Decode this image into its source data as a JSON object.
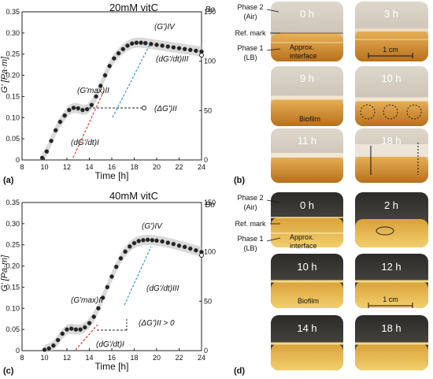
{
  "chart_data": [
    {
      "type": "line",
      "panel_label": "(a)",
      "title": "20mM vitC",
      "xlabel": "Time [h]",
      "ylabel": "G' [Pa·m]",
      "y2label": "Bo",
      "xlim": [
        8,
        24
      ],
      "ylim": [
        0,
        0.35
      ],
      "y2lim": [
        0,
        150
      ],
      "xticks": [
        "8",
        "10",
        "12",
        "14",
        "16",
        "18",
        "20",
        "22",
        "24"
      ],
      "yticks": [
        "0",
        "0.05",
        "0.10",
        "0.15",
        "0.20",
        "0.25",
        "0.30",
        "0.35"
      ],
      "y2ticks": [
        "0",
        "50",
        "100",
        "150"
      ],
      "series": [
        {
          "x": [
            9.8,
            10.2,
            10.6,
            11.0,
            11.4,
            11.8,
            12.2,
            12.6,
            13.0,
            13.4,
            13.8,
            14.2,
            14.6,
            15.0,
            15.4,
            15.8,
            16.2,
            16.6,
            17.0,
            17.4,
            17.8,
            18.2,
            18.6,
            19.0,
            19.5,
            20.0,
            20.5,
            21.0,
            21.5,
            22.0,
            22.5,
            23.0,
            23.5,
            24.0
          ],
          "y": [
            0.005,
            0.02,
            0.045,
            0.07,
            0.09,
            0.105,
            0.118,
            0.123,
            0.122,
            0.118,
            0.12,
            0.13,
            0.15,
            0.175,
            0.2,
            0.222,
            0.24,
            0.252,
            0.262,
            0.27,
            0.275,
            0.277,
            0.277,
            0.276,
            0.274,
            0.272,
            0.27,
            0.268,
            0.266,
            0.264,
            0.262,
            0.26,
            0.258,
            0.256
          ]
        }
      ],
      "annotations": [
        "(G')IV",
        "(G'max)II",
        "(ΔG')II",
        "(dG'/dt)III",
        "(dG'/dt)I"
      ]
    },
    {
      "type": "line",
      "panel_label": "(c)",
      "title": "40mM vitC",
      "xlabel": "Time [h]",
      "ylabel": "G' [Pa·m]",
      "y2label": "Bo",
      "xlim": [
        8,
        24
      ],
      "ylim": [
        0,
        0.35
      ],
      "y2lim": [
        0,
        150
      ],
      "xticks": [
        "8",
        "10",
        "12",
        "14",
        "16",
        "18",
        "20",
        "22",
        "24"
      ],
      "yticks": [
        "0",
        "0.05",
        "0.10",
        "0.15",
        "0.20",
        "0.25",
        "0.30",
        "0.35"
      ],
      "y2ticks": [
        "0",
        "50",
        "100",
        "150"
      ],
      "series": [
        {
          "x": [
            10.0,
            10.4,
            10.8,
            11.2,
            11.6,
            12.0,
            12.4,
            12.8,
            13.2,
            13.6,
            14.0,
            14.4,
            14.8,
            15.2,
            15.6,
            16.0,
            16.4,
            16.8,
            17.2,
            17.6,
            18.0,
            18.4,
            18.8,
            19.2,
            19.6,
            20.0,
            20.5,
            21.0,
            21.5,
            22.0,
            22.5,
            23.0,
            23.5,
            24.0
          ],
          "y": [
            0.002,
            0.005,
            0.012,
            0.025,
            0.04,
            0.05,
            0.052,
            0.05,
            0.05,
            0.055,
            0.065,
            0.08,
            0.1,
            0.125,
            0.15,
            0.175,
            0.198,
            0.218,
            0.234,
            0.246,
            0.254,
            0.259,
            0.261,
            0.262,
            0.261,
            0.26,
            0.258,
            0.255,
            0.252,
            0.248,
            0.245,
            0.241,
            0.237,
            0.233
          ]
        }
      ],
      "annotations": [
        "(G')IV",
        "(G'max)II",
        "(ΔG')II > 0",
        "(dG'/dt)III",
        "(dG'/dt)I"
      ]
    }
  ],
  "panel_b": {
    "label": "(b)",
    "legend": {
      "phase2": "Phase 2",
      "air": "(Air)",
      "ref": "Ref. mark",
      "phase1": "Phase 1",
      "lb": "(LB)",
      "approx": "Approx.",
      "interface": "interface",
      "scale": "1 cm",
      "biofilm": "Biofilm"
    },
    "times": [
      "0 h",
      "3 h",
      "9 h",
      "10 h",
      "11 h",
      "18 h"
    ]
  },
  "panel_d": {
    "label": "(d)",
    "legend": {
      "phase2": "Phase 2",
      "air": "(Air)",
      "ref": "Ref. mark",
      "phase1": "Phase 1",
      "lb": "(LB)",
      "approx": "Approx.",
      "interface": "interface",
      "scale": "1 cm",
      "biofilm": "Biofilm"
    },
    "times": [
      "0 h",
      "2 h",
      "10 h",
      "12 h",
      "14 h",
      "18 h"
    ]
  },
  "colors": {
    "curve": "#222222",
    "band": "#cfcfcf",
    "red_dash": "#e0392b",
    "blue_dash": "#2f9ad6",
    "amber": "#c8861c"
  }
}
